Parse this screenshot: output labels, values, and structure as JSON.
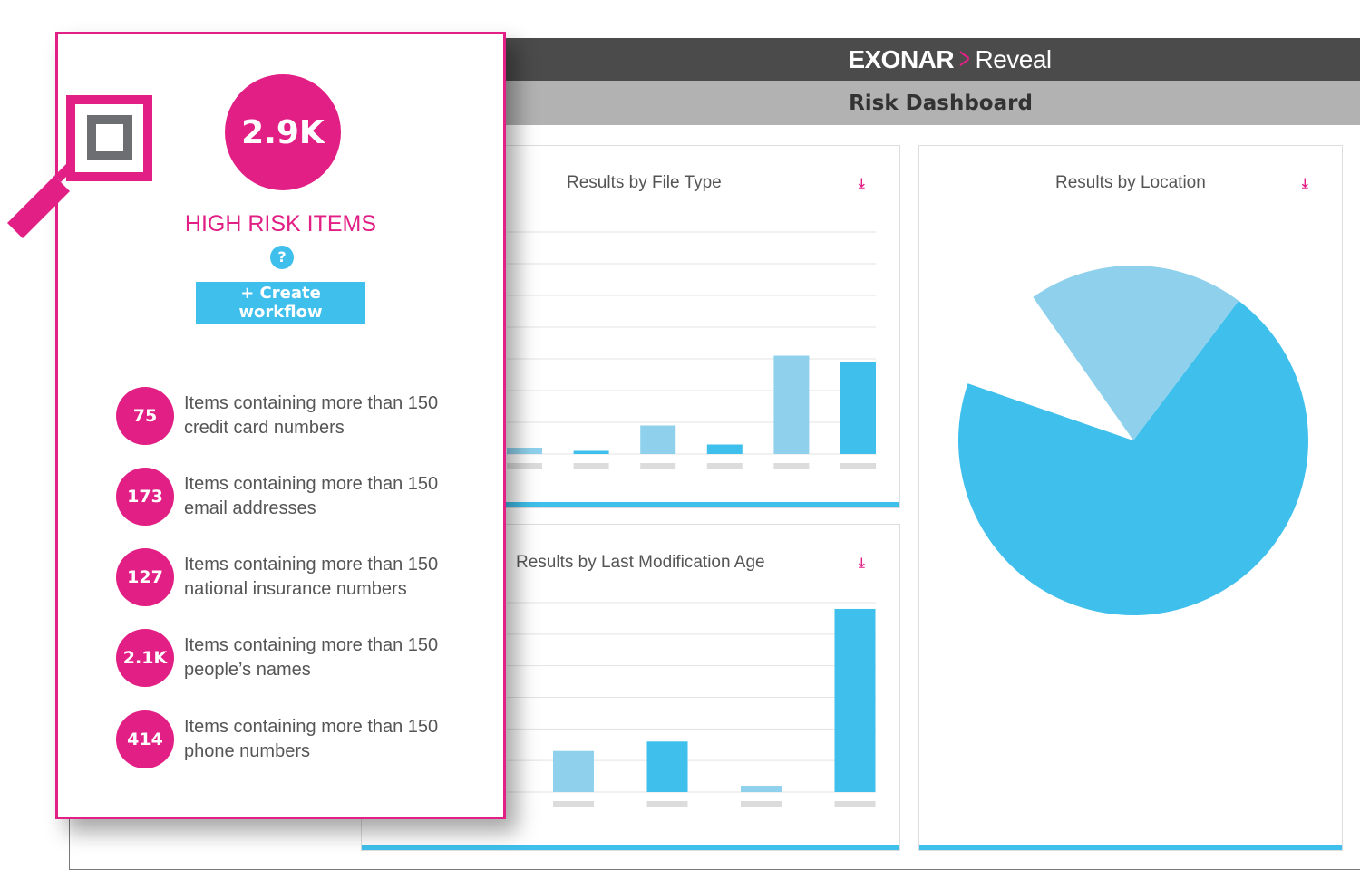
{
  "header": {
    "logo_brand": "EXONAR",
    "logo_product": "Reveal",
    "page_title": "Risk Dashboard"
  },
  "colors": {
    "accent": "#e21f85",
    "blue": "#3fbfec",
    "light_blue": "#8fd1ec",
    "header_dark": "#4b4b4b",
    "header_gray": "#b2b2b2"
  },
  "card": {
    "icon": "magnifier-icon",
    "total": "2.9K",
    "label": "HIGH RISK ITEMS",
    "help": "?",
    "create_workflow": "+ Create workflow",
    "items": [
      {
        "count": "75",
        "line1": "Items containing more than 150",
        "line2": "credit card numbers"
      },
      {
        "count": "173",
        "line1": "Items containing more than 150",
        "line2": "email addresses"
      },
      {
        "count": "127",
        "line1": "Items containing more than 150",
        "line2": "national insurance numbers"
      },
      {
        "count": "2.1K",
        "line1": "Items containing more than 150",
        "line2": "people’s names"
      },
      {
        "count": "414",
        "line1": "Items containing more than 150",
        "line2": "phone numbers"
      }
    ]
  },
  "panels": {
    "file_type": "Results by File Type",
    "mod_age": "Results by Last Modification Age",
    "location": "Results by Location",
    "download_icon": "download-icon"
  },
  "chart_data": [
    {
      "type": "bar",
      "title": "Results by File Type",
      "values": [
        0.2,
        0.1,
        0.9,
        0.3,
        3.1,
        2.9
      ],
      "colors": [
        "#8fd1ec",
        "#3fbfec",
        "#8fd1ec",
        "#3fbfec",
        "#8fd1ec",
        "#3fbfec"
      ],
      "ylim": [
        0,
        7
      ],
      "grid": true
    },
    {
      "type": "bar",
      "title": "Results by Last Modification Age",
      "values": [
        1.3,
        1.6,
        0.2,
        5.8
      ],
      "colors": [
        "#8fd1ec",
        "#3fbfec",
        "#8fd1ec",
        "#3fbfec"
      ],
      "ylim": [
        0,
        6
      ],
      "grid": true
    },
    {
      "type": "pie",
      "title": "Results by Location",
      "values": [
        70,
        10,
        20
      ],
      "colors": [
        "#3fbfec",
        "#ffffff",
        "#8fd1ec"
      ]
    }
  ]
}
